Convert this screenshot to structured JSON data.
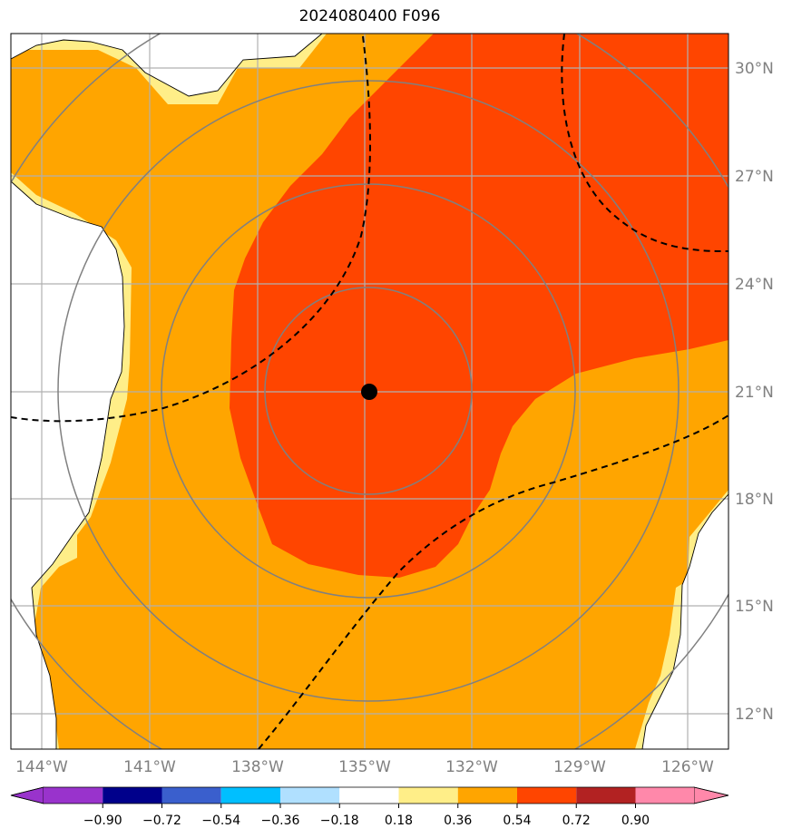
{
  "title": "2024080400 F096",
  "lon_labels": [
    "144°W",
    "141°W",
    "138°W",
    "135°W",
    "132°W",
    "129°W",
    "126°W"
  ],
  "lat_labels": [
    "30°N",
    "27°N",
    "24°N",
    "21°N",
    "18°N",
    "15°N",
    "12°N"
  ],
  "colorbar": {
    "tick_labels": [
      "−0.90",
      "−0.72",
      "−0.54",
      "−0.36",
      "−0.18",
      "0.18",
      "0.36",
      "0.54",
      "0.72",
      "0.90"
    ],
    "colors": [
      "#9933cc",
      "#00008b",
      "#3a5fcd",
      "#00bfff",
      "#b0e0ff",
      "#ffffff",
      "#ffee88",
      "#ffa500",
      "#ff4500",
      "#b22222",
      "#ff88aa"
    ]
  },
  "colors": {
    "land": "#ffffff",
    "level_036": "#ffee88",
    "level_054": "#ffa500",
    "level_072": "#ff4500",
    "range_ring": "#808080",
    "grid": "#b0b0b0",
    "contour": "#000000",
    "center_marker": "#000000"
  },
  "icons": {
    "center": "storm-center-dot"
  }
}
